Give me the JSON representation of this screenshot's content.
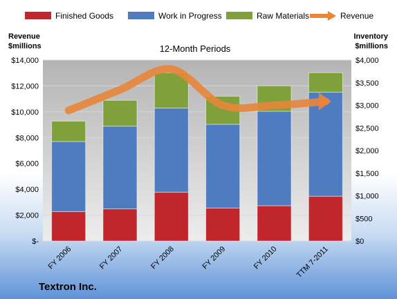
{
  "chart_data": {
    "type": "bar",
    "stacked": true,
    "title": "12-Month Periods",
    "company_label": "Textron Inc.",
    "categories": [
      "FY 2006",
      "FY 2007",
      "FY 2008",
      "FY 2009",
      "FY 2010",
      "TTM 7-2011"
    ],
    "left_axis": {
      "title_line1": "Revenue",
      "title_line2": "$millions",
      "range": [
        0,
        14000
      ],
      "tick_values": [
        0,
        2000,
        4000,
        6000,
        8000,
        10000,
        12000,
        14000
      ],
      "tick_labels": [
        "$-",
        "$2,000",
        "$4,000",
        "$6,000",
        "$8,000",
        "$10,000",
        "$12,000",
        "$14,000"
      ]
    },
    "right_axis": {
      "title_line1": "Inventory",
      "title_line2": "$millions",
      "range": [
        0,
        4000
      ],
      "tick_values": [
        0,
        500,
        1000,
        1500,
        2000,
        2500,
        3000,
        3500,
        4000
      ],
      "tick_labels": [
        "$0",
        "$500",
        "$1,000",
        "$1,500",
        "$2,000",
        "$2,500",
        "$3,000",
        "$3,500",
        "$4,000"
      ]
    },
    "series": [
      {
        "name": "Finished Goods",
        "axis": "right",
        "kind": "bar",
        "color": "#c0262c",
        "values": [
          650,
          710,
          1080,
          730,
          780,
          990
        ]
      },
      {
        "name": "Work in Progress",
        "axis": "right",
        "kind": "bar",
        "color": "#4f7cc0",
        "values": [
          1550,
          1830,
          1860,
          1850,
          2090,
          2300
        ]
      },
      {
        "name": "Raw Materials",
        "axis": "right",
        "kind": "bar",
        "color": "#7fa03a",
        "values": [
          450,
          570,
          780,
          620,
          560,
          430
        ]
      },
      {
        "name": "Revenue",
        "axis": "left",
        "kind": "line",
        "color": "#e8863a",
        "values": [
          10100,
          11700,
          13300,
          10500,
          10500,
          10800
        ]
      }
    ],
    "legend_position": "top",
    "grid": true
  }
}
